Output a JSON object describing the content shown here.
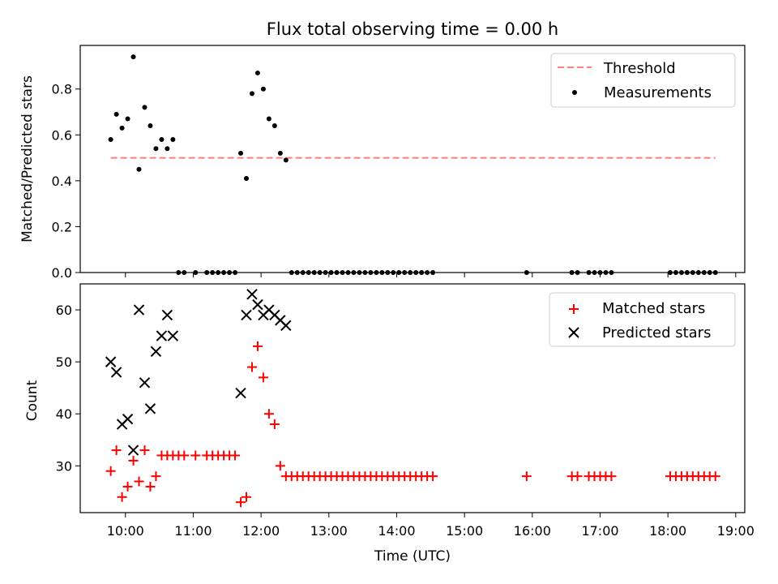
{
  "figure": {
    "title": "Flux total observing time = 0.00 h",
    "xlabel": "Time (UTC)",
    "x_ticks": [
      "10:00",
      "11:00",
      "12:00",
      "13:00",
      "14:00",
      "15:00",
      "16:00",
      "17:00",
      "18:00",
      "19:00"
    ],
    "top_ylabel": "Matched/Predicted stars",
    "top_yticks": [
      "0.0",
      "0.2",
      "0.4",
      "0.6",
      "0.8"
    ],
    "bottom_ylabel": "Count",
    "bottom_yticks": [
      "30",
      "40",
      "50",
      "60"
    ],
    "legend_top": {
      "threshold": "Threshold",
      "measurements": "Measurements"
    },
    "legend_bottom": {
      "matched": "Matched stars",
      "predicted": "Predicted stars"
    }
  },
  "chart_data": [
    {
      "type": "scatter",
      "panel": "top",
      "title": "Flux total observing time = 0.00 h",
      "ylabel": "Matched/Predicted stars",
      "xlim": [
        "09:20",
        "19:08"
      ],
      "ylim": [
        0,
        0.99
      ],
      "legend": "top-right",
      "colors": {
        "measurements": "#000000",
        "threshold": "#ff7f7f"
      },
      "threshold": {
        "name": "Threshold",
        "value": 0.5,
        "x_range": [
          "09:47",
          "18:42"
        ],
        "style": "dashed"
      },
      "series": [
        {
          "name": "Measurements",
          "x": [
            "09:47",
            "09:52",
            "09:57",
            "10:02",
            "10:07",
            "10:12",
            "10:17",
            "10:22",
            "10:27",
            "10:32",
            "10:37",
            "10:42",
            "10:47",
            "10:52",
            "11:02",
            "11:12",
            "11:17",
            "11:22",
            "11:27",
            "11:32",
            "11:37",
            "11:42",
            "11:47",
            "11:52",
            "11:57",
            "12:02",
            "12:07",
            "12:12",
            "12:17",
            "12:22",
            "12:27",
            "12:32",
            "12:37",
            "12:42",
            "12:47",
            "12:52",
            "12:57",
            "13:02",
            "13:07",
            "13:12",
            "13:17",
            "13:22",
            "13:27",
            "13:32",
            "13:37",
            "13:42",
            "13:47",
            "13:52",
            "13:57",
            "14:02",
            "14:07",
            "14:12",
            "14:17",
            "14:22",
            "14:27",
            "14:32",
            "15:55",
            "16:35",
            "16:40",
            "16:50",
            "16:55",
            "17:00",
            "17:05",
            "17:10",
            "18:02",
            "18:07",
            "18:12",
            "18:17",
            "18:22",
            "18:27",
            "18:32",
            "18:37",
            "18:42"
          ],
          "y": [
            0.58,
            0.69,
            0.63,
            0.67,
            0.94,
            0.45,
            0.72,
            0.64,
            0.54,
            0.58,
            0.54,
            0.58,
            0.0,
            0.0,
            0.0,
            0.0,
            0.0,
            0.0,
            0.0,
            0.0,
            0.0,
            0.52,
            0.41,
            0.78,
            0.87,
            0.8,
            0.67,
            0.64,
            0.52,
            0.49,
            0.0,
            0.0,
            0.0,
            0.0,
            0.0,
            0.0,
            0.0,
            0.0,
            0.0,
            0.0,
            0.0,
            0.0,
            0.0,
            0.0,
            0.0,
            0.0,
            0.0,
            0.0,
            0.0,
            0.0,
            0.0,
            0.0,
            0.0,
            0.0,
            0.0,
            0.0,
            0.0,
            0.0,
            0.0,
            0.0,
            0.0,
            0.0,
            0.0,
            0.0,
            0.0,
            0.0,
            0.0,
            0.0,
            0.0,
            0.0,
            0.0,
            0.0,
            0.0
          ]
        }
      ]
    },
    {
      "type": "scatter",
      "panel": "bottom",
      "xlabel": "Time (UTC)",
      "ylabel": "Count",
      "xlim": [
        "09:20",
        "19:08"
      ],
      "ylim": [
        21,
        65
      ],
      "legend": "top-right",
      "colors": {
        "matched": "#ff0000",
        "predicted": "#000000"
      },
      "series": [
        {
          "name": "Matched stars",
          "marker": "plus",
          "x": [
            "09:47",
            "09:52",
            "09:57",
            "10:02",
            "10:07",
            "10:12",
            "10:17",
            "10:22",
            "10:27",
            "10:32",
            "10:37",
            "10:42",
            "10:47",
            "10:52",
            "11:02",
            "11:12",
            "11:17",
            "11:22",
            "11:27",
            "11:32",
            "11:37",
            "11:42",
            "11:47",
            "11:52",
            "11:57",
            "12:02",
            "12:07",
            "12:12",
            "12:17",
            "12:22",
            "12:27",
            "12:32",
            "12:37",
            "12:42",
            "12:47",
            "12:52",
            "12:57",
            "13:02",
            "13:07",
            "13:12",
            "13:17",
            "13:22",
            "13:27",
            "13:32",
            "13:37",
            "13:42",
            "13:47",
            "13:52",
            "13:57",
            "14:02",
            "14:07",
            "14:12",
            "14:17",
            "14:22",
            "14:27",
            "14:32",
            "15:55",
            "16:35",
            "16:40",
            "16:50",
            "16:55",
            "17:00",
            "17:05",
            "17:10",
            "18:02",
            "18:07",
            "18:12",
            "18:17",
            "18:22",
            "18:27",
            "18:32",
            "18:37",
            "18:42"
          ],
          "y": [
            29,
            33,
            24,
            26,
            31,
            27,
            33,
            26,
            28,
            32,
            32,
            32,
            32,
            32,
            32,
            32,
            32,
            32,
            32,
            32,
            32,
            23,
            24,
            49,
            53,
            47,
            40,
            38,
            30,
            28,
            28,
            28,
            28,
            28,
            28,
            28,
            28,
            28,
            28,
            28,
            28,
            28,
            28,
            28,
            28,
            28,
            28,
            28,
            28,
            28,
            28,
            28,
            28,
            28,
            28,
            28,
            28,
            28,
            28,
            28,
            28,
            28,
            28,
            28,
            28,
            28,
            28,
            28,
            28,
            28,
            28,
            28,
            28
          ]
        },
        {
          "name": "Predicted stars",
          "marker": "x",
          "x": [
            "09:47",
            "09:52",
            "09:57",
            "10:02",
            "10:07",
            "10:12",
            "10:17",
            "10:22",
            "10:27",
            "10:32",
            "10:37",
            "10:42",
            "11:42",
            "11:47",
            "11:52",
            "11:57",
            "12:02",
            "12:07",
            "12:12",
            "12:17",
            "12:22"
          ],
          "y": [
            50,
            48,
            38,
            39,
            33,
            60,
            46,
            41,
            52,
            55,
            59,
            55,
            44,
            59,
            63,
            61,
            59,
            60,
            59,
            58,
            57
          ]
        }
      ]
    }
  ]
}
